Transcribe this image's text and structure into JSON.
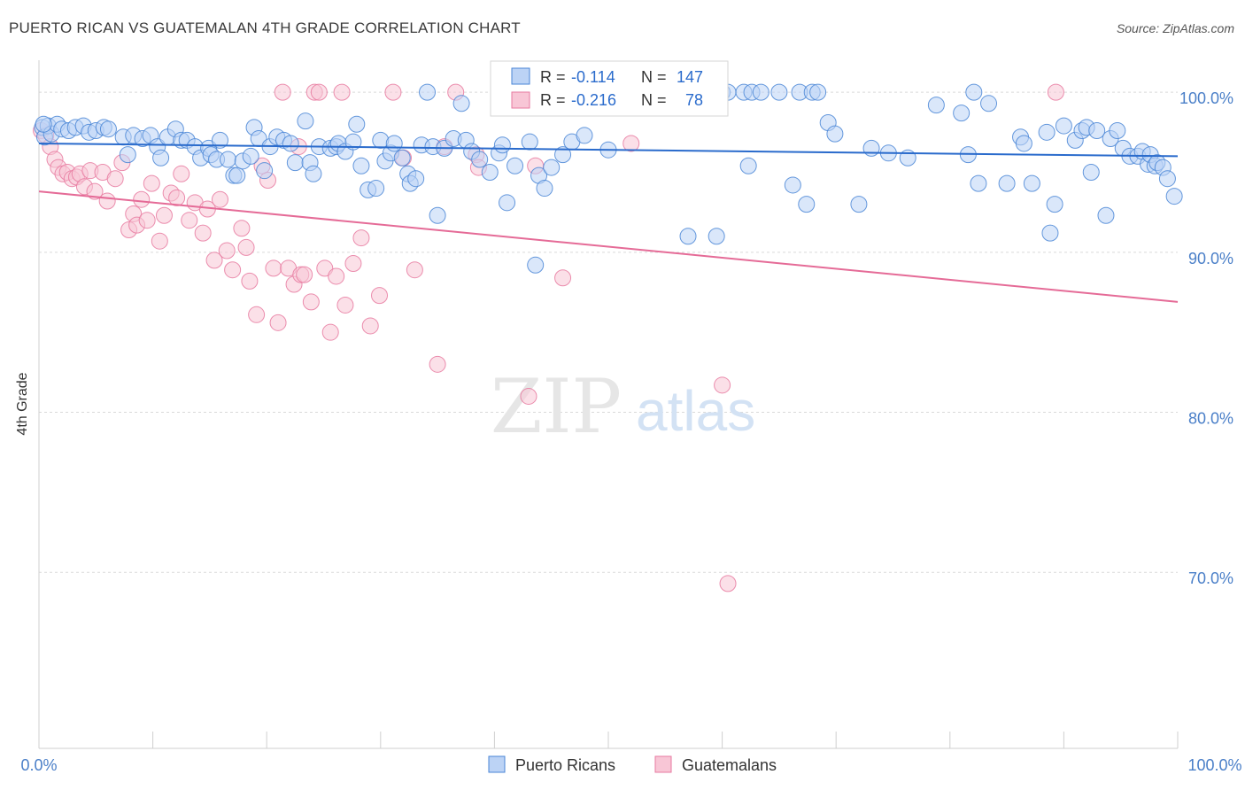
{
  "title": "PUERTO RICAN VS GUATEMALAN 4TH GRADE CORRELATION CHART",
  "source": "Source: ZipAtlas.com",
  "watermark": {
    "zip": "ZIP",
    "atlas": "atlas"
  },
  "colors": {
    "blue": "#4a86d6",
    "blue_fill": "#bcd3f5",
    "blue_line": "#2a6bcc",
    "pink": "#e77aa0",
    "pink_fill": "#f8c6d6",
    "pink_line": "#e56b97",
    "axis_label": "#4a7fc8",
    "grid": "#d9d9d9"
  },
  "chart_data": {
    "type": "scatter",
    "title": "PUERTO RICAN VS GUATEMALAN 4TH GRADE CORRELATION CHART",
    "xlabel": "",
    "ylabel": "4th Grade",
    "xlim": [
      0,
      100
    ],
    "ylim": [
      59,
      102
    ],
    "x_ticks": [
      "0.0%",
      "100.0%"
    ],
    "y_ticks": [
      {
        "value": 100,
        "label": "100.0%"
      },
      {
        "value": 90,
        "label": "90.0%"
      },
      {
        "value": 80,
        "label": "80.0%"
      },
      {
        "value": 70,
        "label": "70.0%"
      }
    ],
    "grid": true,
    "stats": [
      {
        "r_label": "R =",
        "r": "-0.114",
        "n_label": "N =",
        "n": "147"
      },
      {
        "r_label": "R =",
        "r": "-0.216",
        "n_label": "N =",
        "n": "78"
      }
    ],
    "legend": [
      "Puerto Ricans",
      "Guatemalans"
    ],
    "series": [
      {
        "name": "Puerto Ricans",
        "color": "#4a86d6",
        "trend": {
          "x": [
            0,
            100
          ],
          "y": [
            96.8,
            96.0
          ]
        },
        "points": [
          [
            0.3,
            97.8
          ],
          [
            0.5,
            97.2
          ],
          [
            0.8,
            97.9
          ],
          [
            1.1,
            97.4
          ],
          [
            1.6,
            98.0
          ],
          [
            2.0,
            97.7
          ],
          [
            2.6,
            97.6
          ],
          [
            3.2,
            97.8
          ],
          [
            3.9,
            97.9
          ],
          [
            4.4,
            97.5
          ],
          [
            5.0,
            97.6
          ],
          [
            5.7,
            97.8
          ],
          [
            6.1,
            97.7
          ],
          [
            7.4,
            97.2
          ],
          [
            7.8,
            96.1
          ],
          [
            8.3,
            97.3
          ],
          [
            9.1,
            97.1
          ],
          [
            9.8,
            97.3
          ],
          [
            10.4,
            96.6
          ],
          [
            10.7,
            95.9
          ],
          [
            11.3,
            97.2
          ],
          [
            12.0,
            97.7
          ],
          [
            12.5,
            97.0
          ],
          [
            13.0,
            97.0
          ],
          [
            13.7,
            96.6
          ],
          [
            14.2,
            95.9
          ],
          [
            14.9,
            96.5
          ],
          [
            15.1,
            96.1
          ],
          [
            15.6,
            95.8
          ],
          [
            15.9,
            97.0
          ],
          [
            16.6,
            95.8
          ],
          [
            17.1,
            94.8
          ],
          [
            17.4,
            94.8
          ],
          [
            17.9,
            95.7
          ],
          [
            18.6,
            96.0
          ],
          [
            18.9,
            97.8
          ],
          [
            19.3,
            97.1
          ],
          [
            19.8,
            95.1
          ],
          [
            20.3,
            96.6
          ],
          [
            20.9,
            97.2
          ],
          [
            21.5,
            97.0
          ],
          [
            22.1,
            96.8
          ],
          [
            22.5,
            95.6
          ],
          [
            23.4,
            98.2
          ],
          [
            23.8,
            95.6
          ],
          [
            24.1,
            94.9
          ],
          [
            24.6,
            96.6
          ],
          [
            25.6,
            96.5
          ],
          [
            26.1,
            96.6
          ],
          [
            26.3,
            96.8
          ],
          [
            26.9,
            96.3
          ],
          [
            27.6,
            96.9
          ],
          [
            27.9,
            98.0
          ],
          [
            28.3,
            95.4
          ],
          [
            28.9,
            93.9
          ],
          [
            29.6,
            94.0
          ],
          [
            30.0,
            97.0
          ],
          [
            30.4,
            95.7
          ],
          [
            30.9,
            96.2
          ],
          [
            31.2,
            96.8
          ],
          [
            31.9,
            95.9
          ],
          [
            32.4,
            94.9
          ],
          [
            32.6,
            94.3
          ],
          [
            33.1,
            94.6
          ],
          [
            33.6,
            96.7
          ],
          [
            34.1,
            100.0
          ],
          [
            34.6,
            96.6
          ],
          [
            35.0,
            92.3
          ],
          [
            35.6,
            96.5
          ],
          [
            36.4,
            97.1
          ],
          [
            37.1,
            99.3
          ],
          [
            37.5,
            97.0
          ],
          [
            38.0,
            96.3
          ],
          [
            38.7,
            95.8
          ],
          [
            39.6,
            95.0
          ],
          [
            40.4,
            96.2
          ],
          [
            40.7,
            96.7
          ],
          [
            41.1,
            93.1
          ],
          [
            41.8,
            95.4
          ],
          [
            43.1,
            96.9
          ],
          [
            43.6,
            89.2
          ],
          [
            43.9,
            94.8
          ],
          [
            44.4,
            94.0
          ],
          [
            45.0,
            95.3
          ],
          [
            46.0,
            96.1
          ],
          [
            46.8,
            96.9
          ],
          [
            47.9,
            97.3
          ],
          [
            49.0,
            100.0
          ],
          [
            50.0,
            96.4
          ],
          [
            51.6,
            100.0
          ],
          [
            56.2,
            100.0
          ],
          [
            56.5,
            100.0
          ],
          [
            57.0,
            91.0
          ],
          [
            57.6,
            100.0
          ],
          [
            59.5,
            91.0
          ],
          [
            60.0,
            100.0
          ],
          [
            60.5,
            100.0
          ],
          [
            61.9,
            100.0
          ],
          [
            62.3,
            95.4
          ],
          [
            62.6,
            100.0
          ],
          [
            63.4,
            100.0
          ],
          [
            65.0,
            100.0
          ],
          [
            66.2,
            94.2
          ],
          [
            66.8,
            100.0
          ],
          [
            67.4,
            93.0
          ],
          [
            67.9,
            100.0
          ],
          [
            68.4,
            100.0
          ],
          [
            69.3,
            98.1
          ],
          [
            69.9,
            97.4
          ],
          [
            72.0,
            93.0
          ],
          [
            73.1,
            96.5
          ],
          [
            74.6,
            96.2
          ],
          [
            76.3,
            95.9
          ],
          [
            78.8,
            99.2
          ],
          [
            81.0,
            98.7
          ],
          [
            81.6,
            96.1
          ],
          [
            82.1,
            100.0
          ],
          [
            82.5,
            94.3
          ],
          [
            83.4,
            99.3
          ],
          [
            85.0,
            94.3
          ],
          [
            86.2,
            97.2
          ],
          [
            86.5,
            96.8
          ],
          [
            87.2,
            94.3
          ],
          [
            88.5,
            97.5
          ],
          [
            88.8,
            91.2
          ],
          [
            89.2,
            93.0
          ],
          [
            90.0,
            97.9
          ],
          [
            91.0,
            97.0
          ],
          [
            91.6,
            97.6
          ],
          [
            92.0,
            97.8
          ],
          [
            92.4,
            95.0
          ],
          [
            92.9,
            97.6
          ],
          [
            93.7,
            92.3
          ],
          [
            94.1,
            97.1
          ],
          [
            94.7,
            97.6
          ],
          [
            95.2,
            96.5
          ],
          [
            95.8,
            96.0
          ],
          [
            96.5,
            96.0
          ],
          [
            96.9,
            96.3
          ],
          [
            97.4,
            95.5
          ],
          [
            97.6,
            96.1
          ],
          [
            98.0,
            95.4
          ],
          [
            98.2,
            95.6
          ],
          [
            98.7,
            95.3
          ],
          [
            99.1,
            94.6
          ],
          [
            99.7,
            93.5
          ],
          [
            0.4,
            98.0
          ]
        ]
      },
      {
        "name": "Guatemalans",
        "color": "#e77aa0",
        "trend": {
          "x": [
            0,
            100
          ],
          "y": [
            93.8,
            86.9
          ]
        },
        "points": [
          [
            0.2,
            97.6
          ],
          [
            0.6,
            97.3
          ],
          [
            1.0,
            96.6
          ],
          [
            1.4,
            95.8
          ],
          [
            1.7,
            95.3
          ],
          [
            2.1,
            94.9
          ],
          [
            2.5,
            95.0
          ],
          [
            2.9,
            94.6
          ],
          [
            3.3,
            94.7
          ],
          [
            3.6,
            94.9
          ],
          [
            4.0,
            94.1
          ],
          [
            4.5,
            95.1
          ],
          [
            4.9,
            93.8
          ],
          [
            5.6,
            95.0
          ],
          [
            6.0,
            93.2
          ],
          [
            6.7,
            94.6
          ],
          [
            7.3,
            95.6
          ],
          [
            7.9,
            91.4
          ],
          [
            8.3,
            92.4
          ],
          [
            8.6,
            91.7
          ],
          [
            9.0,
            93.3
          ],
          [
            9.5,
            92.0
          ],
          [
            9.9,
            94.3
          ],
          [
            10.6,
            90.7
          ],
          [
            11.0,
            92.3
          ],
          [
            11.6,
            93.7
          ],
          [
            12.1,
            93.4
          ],
          [
            12.5,
            94.9
          ],
          [
            13.2,
            92.0
          ],
          [
            13.7,
            93.1
          ],
          [
            14.4,
            91.2
          ],
          [
            14.8,
            92.7
          ],
          [
            15.4,
            89.5
          ],
          [
            15.9,
            93.3
          ],
          [
            16.5,
            90.1
          ],
          [
            17.0,
            88.9
          ],
          [
            17.8,
            91.5
          ],
          [
            18.2,
            90.3
          ],
          [
            18.5,
            88.2
          ],
          [
            19.1,
            86.1
          ],
          [
            19.6,
            95.4
          ],
          [
            20.1,
            94.5
          ],
          [
            20.6,
            89.0
          ],
          [
            21.0,
            85.6
          ],
          [
            21.4,
            100.0
          ],
          [
            21.9,
            89.0
          ],
          [
            22.4,
            88.0
          ],
          [
            22.8,
            96.6
          ],
          [
            23.0,
            88.6
          ],
          [
            23.3,
            88.6
          ],
          [
            23.9,
            86.9
          ],
          [
            24.2,
            100.0
          ],
          [
            24.6,
            100.0
          ],
          [
            25.1,
            89.0
          ],
          [
            25.6,
            85.0
          ],
          [
            26.1,
            88.5
          ],
          [
            26.6,
            100.0
          ],
          [
            26.9,
            86.7
          ],
          [
            27.6,
            89.3
          ],
          [
            28.3,
            90.9
          ],
          [
            29.1,
            85.4
          ],
          [
            29.9,
            87.3
          ],
          [
            31.1,
            100.0
          ],
          [
            32.0,
            95.9
          ],
          [
            33.0,
            88.9
          ],
          [
            35.0,
            83.0
          ],
          [
            35.6,
            96.6
          ],
          [
            36.6,
            100.0
          ],
          [
            38.4,
            96.1
          ],
          [
            38.6,
            95.3
          ],
          [
            43.0,
            81.0
          ],
          [
            43.6,
            95.4
          ],
          [
            46.0,
            88.4
          ],
          [
            52.0,
            96.8
          ],
          [
            56.6,
            100.0
          ],
          [
            60.0,
            81.7
          ],
          [
            60.5,
            69.3
          ],
          [
            89.3,
            100.0
          ]
        ]
      }
    ]
  }
}
